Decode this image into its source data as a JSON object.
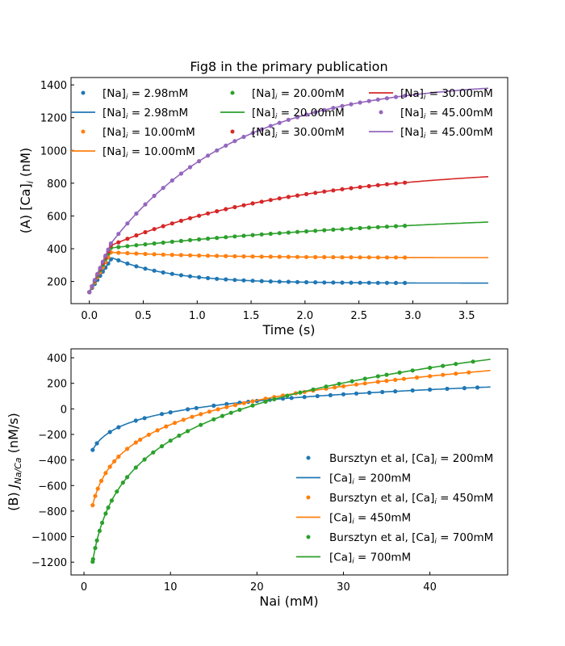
{
  "chart_data": [
    {
      "type": "line",
      "panel": "A",
      "title": "Fig8 in the primary publication",
      "xlabel": "Time (s)",
      "ylabel": "(A) [Ca]_i (nM)",
      "xlim": [
        -0.17,
        3.88
      ],
      "ylim": [
        65,
        1445
      ],
      "xticks": [
        0.0,
        0.5,
        1.0,
        1.5,
        2.0,
        2.5,
        3.0,
        3.5
      ],
      "xtick_labels": [
        "0.0",
        "0.5",
        "1.0",
        "1.5",
        "2.0",
        "2.5",
        "3.0",
        "3.5"
      ],
      "yticks": [
        200,
        400,
        600,
        800,
        1000,
        1200,
        1400
      ],
      "ytick_labels": [
        "200",
        "400",
        "600",
        "800",
        "1000",
        "1200",
        "1400"
      ],
      "grid": false,
      "legend": {
        "placement": "top-left",
        "columns": 3,
        "entries": [
          {
            "kind": "marker",
            "color": "#1f77b4",
            "label": "[Na]",
            "sub": "i",
            "rest": " = 2.98mM"
          },
          {
            "kind": "line",
            "color": "#1f77b4",
            "label": "[Na]",
            "sub": "i",
            "rest": " = 2.98mM"
          },
          {
            "kind": "marker",
            "color": "#ff7f0e",
            "label": "[Na]",
            "sub": "i",
            "rest": " = 10.00mM"
          },
          {
            "kind": "line",
            "color": "#ff7f0e",
            "label": "[Na]",
            "sub": "i",
            "rest": " = 10.00mM"
          },
          {
            "kind": "marker",
            "color": "#2ca02c",
            "label": "[Na]",
            "sub": "i",
            "rest": " = 20.00mM"
          },
          {
            "kind": "line",
            "color": "#2ca02c",
            "label": "[Na]",
            "sub": "i",
            "rest": " = 20.00mM"
          },
          {
            "kind": "marker",
            "color": "#d62728",
            "label": "[Na]",
            "sub": "i",
            "rest": " = 30.00mM"
          },
          {
            "kind": "line",
            "color": "#d62728",
            "label": "[Na]",
            "sub": "i",
            "rest": " = 30.00mM"
          },
          {
            "kind": "marker",
            "color": "#9467bd",
            "label": "[Na]",
            "sub": "i",
            "rest": " = 45.00mM"
          },
          {
            "kind": "line",
            "color": "#9467bd",
            "label": "[Na]",
            "sub": "i",
            "rest": " = 45.00mM"
          }
        ]
      },
      "series": [
        {
          "name": "[Na]i = 2.98mM",
          "color": "#1f77b4",
          "start": 135,
          "peak_t": 0.21,
          "peak": 345,
          "end_model": 192,
          "plateau": 190,
          "tau": 0.55,
          "slope": 0
        },
        {
          "name": "[Na]i = 10.00mM",
          "color": "#ff7f0e",
          "start": 135,
          "peak_t": 0.2,
          "peak": 378,
          "end_model": 345,
          "plateau": 345,
          "tau": 0.9,
          "slope": 0
        },
        {
          "name": "[Na]i = 20.00mM",
          "color": "#2ca02c",
          "start": 135,
          "peak_t": 0.2,
          "peak": 405,
          "end_model": 563,
          "plateau": 560,
          "tau": -1,
          "slope": 0
        },
        {
          "name": "[Na]i = 30.00mM",
          "color": "#d62728",
          "start": 135,
          "peak_t": 0.2,
          "peak": 420,
          "end_model": 840,
          "plateau": 840,
          "tau": -2,
          "slope": 0
        },
        {
          "name": "[Na]i = 45.00mM",
          "color": "#9467bd",
          "start": 135,
          "peak_t": 0.2,
          "peak": 432,
          "end_model": 1380,
          "plateau": 1380,
          "tau": -3,
          "slope": 0
        }
      ],
      "data_t_max": 3.0,
      "model_t_max": 3.7
    },
    {
      "type": "line",
      "panel": "B",
      "title": "",
      "xlabel": "Nai (mM)",
      "ylabel": "(B) J_Na/Ca (nM/s)",
      "xlim": [
        -1.5,
        49
      ],
      "ylim": [
        -1300,
        470
      ],
      "xticks": [
        0,
        10,
        20,
        30,
        40
      ],
      "xtick_labels": [
        "0",
        "10",
        "20",
        "30",
        "40"
      ],
      "yticks": [
        -1200,
        -1000,
        -800,
        -600,
        -400,
        -200,
        0,
        200,
        400
      ],
      "ytick_labels": [
        "−1200",
        "−1000",
        "−800",
        "−600",
        "−400",
        "−200",
        "0",
        "200",
        "400"
      ],
      "grid": false,
      "legend": {
        "placement": "lower-right",
        "columns": 1,
        "entries": [
          {
            "kind": "marker",
            "color": "#1f77b4",
            "label": "Bursztyn et al, [Ca]",
            "sub": "i",
            "rest": " = 200mM"
          },
          {
            "kind": "line",
            "color": "#1f77b4",
            "label": "[Ca]",
            "sub": "i",
            "rest": " = 200mM"
          },
          {
            "kind": "marker",
            "color": "#ff7f0e",
            "label": "Bursztyn et al, [Ca]",
            "sub": "i",
            "rest": " = 450mM"
          },
          {
            "kind": "line",
            "color": "#ff7f0e",
            "label": "[Ca]",
            "sub": "i",
            "rest": " = 450mM"
          },
          {
            "kind": "marker",
            "color": "#2ca02c",
            "label": "Bursztyn et al, [Ca]",
            "sub": "i",
            "rest": " = 700mM"
          },
          {
            "kind": "line",
            "color": "#2ca02c",
            "label": "[Ca]",
            "sub": "i",
            "rest": " = 700mM"
          }
        ]
      },
      "series": [
        {
          "name": "[Ca]i = 200mM",
          "color": "#1f77b4",
          "points": [
            [
              1,
              -320
            ],
            [
              10,
              -30
            ],
            [
              20,
              60
            ],
            [
              30,
              115
            ],
            [
              40,
              150
            ],
            [
              47,
              175
            ]
          ],
          "data_x": [
            1.0,
            1.5,
            3.0,
            4.0,
            6.0,
            7.0,
            9.0,
            10.0,
            12.0,
            13.0,
            15.0,
            16.5,
            18.0,
            19.0,
            20.0,
            21.5,
            23.0,
            24.0,
            25.5,
            27.0,
            28.5,
            30.0,
            31.5,
            33.0,
            34.5,
            36.0,
            38.0,
            40.0,
            42.0,
            44.0,
            45.5
          ]
        },
        {
          "name": "[Ca]i = 450mM",
          "color": "#ff7f0e",
          "points": [
            [
              1,
              -760
            ],
            [
              2,
              -560
            ],
            [
              5,
              -310
            ],
            [
              10,
              -115
            ],
            [
              20,
              60
            ],
            [
              30,
              175
            ],
            [
              40,
              255
            ],
            [
              47,
              302
            ]
          ],
          "data_x": [
            1.0,
            1.3,
            1.6,
            2.0,
            2.5,
            3.0,
            3.5,
            4.0,
            5.0,
            6.0,
            6.5,
            7.5,
            8.5,
            9.5,
            10.5,
            11.5,
            12.5,
            13.5,
            14.5,
            15.5,
            16.5,
            17.5,
            18.5,
            19.5,
            21.0,
            22.0,
            23.0,
            24.5,
            25.5,
            26.5,
            28.0,
            29.0,
            30.0,
            31.5,
            32.5,
            34.0,
            35.0,
            36.0,
            37.0,
            38.5,
            40.0,
            41.5,
            43.0,
            44.5
          ]
        },
        {
          "name": "[Ca]i = 700mM",
          "color": "#2ca02c",
          "points": [
            [
              1,
              -1220
            ],
            [
              2,
              -880
            ],
            [
              5,
              -520
            ],
            [
              10,
              -270
            ],
            [
              20,
              25
            ],
            [
              30,
              200
            ],
            [
              40,
              330
            ],
            [
              47,
              393
            ]
          ],
          "data_x": [
            1.0,
            1.05,
            1.3,
            1.5,
            1.8,
            2.1,
            2.5,
            2.8,
            3.2,
            3.8,
            4.5,
            5.0,
            6.0,
            7.0,
            8.0,
            9.0,
            10.0,
            11.0,
            12.0,
            13.5,
            15.0,
            16.0,
            17.0,
            18.0,
            19.5,
            21.0,
            22.0,
            23.5,
            25.0,
            26.5,
            28.0,
            29.5,
            31.0,
            32.5,
            34.0,
            35.0,
            36.5,
            38.0,
            40.0,
            41.5,
            43.0,
            45.0
          ]
        }
      ]
    }
  ]
}
